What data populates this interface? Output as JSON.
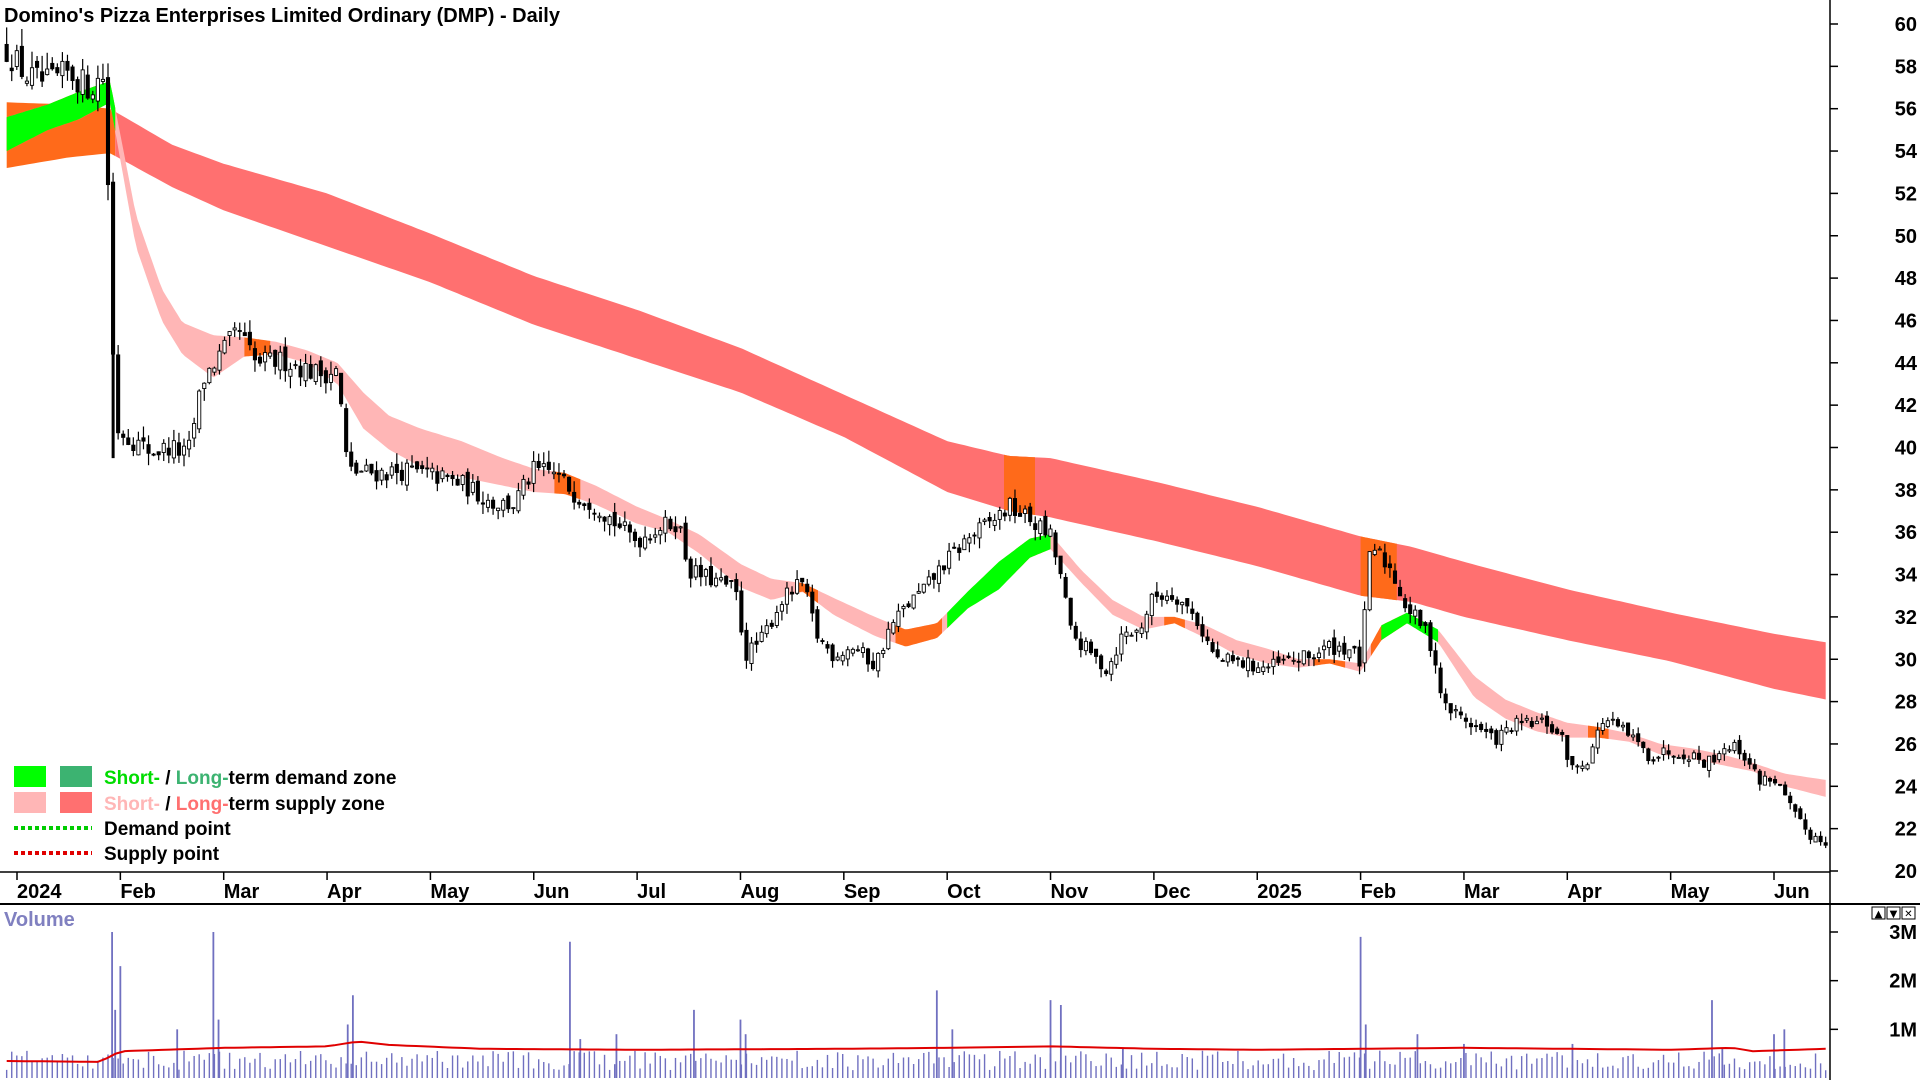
{
  "colors": {
    "short_demand": "#00ff00",
    "long_demand": "#3cb371",
    "short_supply": "#ffb6b6",
    "long_supply": "#ff7070",
    "crossover": "#ff6a1a",
    "volume_bar": "#7070c0",
    "volume_avg": "#e00000",
    "legend_short": "#00dd00",
    "legend_long": "#3cb371"
  },
  "chart_data": [
    {
      "type": "candlestick",
      "title": "Domino's Pizza Enterprises Limited Ordinary (DMP) - Daily",
      "y_axis_side": "right",
      "ylim": [
        19.5,
        61
      ],
      "y_ticks": [
        "60",
        "58",
        "56",
        "54",
        "52",
        "50",
        "48",
        "46",
        "44",
        "42",
        "40",
        "38",
        "36",
        "34",
        "32",
        "30",
        "28",
        "26",
        "24",
        "22",
        "20"
      ],
      "x_ticks": [
        {
          "label": "2024",
          "month": 0.0
        },
        {
          "label": "Feb",
          "month": 1.0
        },
        {
          "label": "Mar",
          "month": 2.0
        },
        {
          "label": "Apr",
          "month": 3.0
        },
        {
          "label": "May",
          "month": 4.0
        },
        {
          "label": "Jun",
          "month": 5.0
        },
        {
          "label": "Jul",
          "month": 6.0
        },
        {
          "label": "Aug",
          "month": 7.0
        },
        {
          "label": "Sep",
          "month": 8.0
        },
        {
          "label": "Oct",
          "month": 9.0
        },
        {
          "label": "Nov",
          "month": 10.0
        },
        {
          "label": "Dec",
          "month": 11.0
        },
        {
          "label": "2025",
          "month": 12.0
        },
        {
          "label": "Feb",
          "month": 13.0
        },
        {
          "label": "Mar",
          "month": 14.0
        },
        {
          "label": "Apr",
          "month": 15.0
        },
        {
          "label": "May",
          "month": 16.0
        },
        {
          "label": "Jun",
          "month": 17.0
        }
      ],
      "price_path": [
        [
          -0.1,
          58.8
        ],
        [
          0.1,
          57.5
        ],
        [
          0.3,
          57.2
        ],
        [
          0.5,
          57.7
        ],
        [
          0.7,
          57.0
        ],
        [
          0.85,
          57.6
        ],
        [
          0.95,
          41.0
        ],
        [
          1.1,
          40.4
        ],
        [
          1.3,
          39.8
        ],
        [
          1.5,
          40.0
        ],
        [
          1.65,
          39.6
        ],
        [
          1.8,
          43.2
        ],
        [
          2.0,
          44.6
        ],
        [
          2.15,
          45.5
        ],
        [
          2.3,
          44.0
        ],
        [
          2.6,
          44.1
        ],
        [
          2.9,
          43.5
        ],
        [
          3.1,
          43.6
        ],
        [
          3.2,
          38.9
        ],
        [
          3.5,
          38.8
        ],
        [
          3.8,
          38.9
        ],
        [
          4.0,
          38.7
        ],
        [
          4.3,
          38.3
        ],
        [
          4.6,
          37.4
        ],
        [
          4.8,
          37.3
        ],
        [
          5.0,
          38.9
        ],
        [
          5.2,
          38.8
        ],
        [
          5.4,
          37.8
        ],
        [
          5.6,
          37.3
        ],
        [
          5.8,
          36.4
        ],
        [
          6.0,
          35.6
        ],
        [
          6.2,
          36.2
        ],
        [
          6.4,
          36.5
        ],
        [
          6.5,
          34.2
        ],
        [
          6.7,
          33.8
        ],
        [
          6.95,
          33.3
        ],
        [
          7.05,
          30.2
        ],
        [
          7.2,
          30.9
        ],
        [
          7.4,
          32.8
        ],
        [
          7.6,
          33.6
        ],
        [
          7.75,
          31.0
        ],
        [
          7.9,
          30.2
        ],
        [
          8.1,
          30.6
        ],
        [
          8.3,
          29.7
        ],
        [
          8.45,
          31.5
        ],
        [
          8.6,
          32.5
        ],
        [
          8.8,
          33.4
        ],
        [
          8.95,
          34.4
        ],
        [
          9.2,
          35.7
        ],
        [
          9.4,
          36.4
        ],
        [
          9.6,
          37.2
        ],
        [
          9.8,
          36.6
        ],
        [
          10.0,
          35.8
        ],
        [
          10.1,
          33.9
        ],
        [
          10.2,
          31.2
        ],
        [
          10.4,
          30.2
        ],
        [
          10.55,
          29.5
        ],
        [
          10.7,
          31.2
        ],
        [
          10.85,
          31.3
        ],
        [
          11.0,
          33.0
        ],
        [
          11.2,
          33.1
        ],
        [
          11.4,
          32.0
        ],
        [
          11.6,
          30.0
        ],
        [
          11.85,
          29.8
        ],
        [
          12.1,
          29.6
        ],
        [
          12.3,
          29.9
        ],
        [
          12.5,
          30.1
        ],
        [
          12.7,
          30.6
        ],
        [
          12.9,
          30.5
        ],
        [
          13.0,
          29.8
        ],
        [
          13.1,
          35.4
        ],
        [
          13.3,
          34.2
        ],
        [
          13.45,
          32.4
        ],
        [
          13.6,
          31.6
        ],
        [
          13.7,
          30.5
        ],
        [
          13.8,
          27.8
        ],
        [
          14.0,
          27.2
        ],
        [
          14.3,
          26.2
        ],
        [
          14.5,
          26.9
        ],
        [
          14.8,
          27.0
        ],
        [
          14.95,
          26.2
        ],
        [
          15.05,
          24.8
        ],
        [
          15.2,
          25.3
        ],
        [
          15.35,
          27.2
        ],
        [
          15.6,
          26.4
        ],
        [
          15.8,
          25.4
        ],
        [
          16.0,
          25.7
        ],
        [
          16.2,
          25.5
        ],
        [
          16.35,
          25.1
        ],
        [
          16.55,
          26.0
        ],
        [
          16.7,
          25.6
        ],
        [
          16.85,
          24.3
        ],
        [
          17.0,
          24.4
        ],
        [
          17.2,
          22.6
        ],
        [
          17.35,
          21.7
        ],
        [
          17.5,
          21.4
        ]
      ],
      "short_zone": [
        [
          -0.1,
          55.6,
          54.0
        ],
        [
          0.3,
          56.2,
          55.0
        ],
        [
          0.6,
          56.8,
          55.5
        ],
        [
          0.9,
          57.3,
          56.3
        ],
        [
          1.15,
          51.0,
          49.5
        ],
        [
          1.4,
          47.5,
          46.0
        ],
        [
          1.6,
          45.9,
          44.4
        ],
        [
          1.9,
          45.3,
          43.3
        ],
        [
          2.2,
          45.2,
          44.3
        ],
        [
          2.5,
          45.0,
          44.4
        ],
        [
          2.8,
          44.6,
          44.0
        ],
        [
          3.1,
          44.0,
          43.0
        ],
        [
          3.35,
          42.6,
          40.9
        ],
        [
          3.6,
          41.5,
          39.9
        ],
        [
          3.9,
          40.9,
          39.1
        ],
        [
          4.3,
          40.3,
          38.6
        ],
        [
          4.7,
          39.5,
          38.2
        ],
        [
          5.0,
          39.0,
          37.9
        ],
        [
          5.3,
          38.8,
          37.8
        ],
        [
          5.6,
          38.2,
          37.3
        ],
        [
          6.0,
          37.2,
          36.4
        ],
        [
          6.3,
          36.6,
          36.0
        ],
        [
          6.6,
          35.9,
          35.0
        ],
        [
          7.0,
          34.5,
          33.4
        ],
        [
          7.3,
          33.8,
          32.8
        ],
        [
          7.6,
          33.6,
          33.2
        ],
        [
          7.9,
          32.9,
          32.1
        ],
        [
          8.3,
          32.0,
          31.1
        ],
        [
          8.6,
          31.4,
          30.6
        ],
        [
          8.9,
          31.7,
          31.0
        ],
        [
          9.2,
          33.2,
          32.4
        ],
        [
          9.5,
          34.6,
          33.3
        ],
        [
          9.8,
          35.7,
          34.8
        ],
        [
          10.0,
          35.9,
          35.2
        ],
        [
          10.3,
          34.2,
          33.6
        ],
        [
          10.6,
          32.8,
          32.1
        ],
        [
          10.9,
          32.0,
          31.4
        ],
        [
          11.2,
          32.0,
          31.7
        ],
        [
          11.5,
          31.6,
          31.0
        ],
        [
          11.8,
          30.9,
          30.2
        ],
        [
          12.1,
          30.5,
          29.8
        ],
        [
          12.4,
          30.0,
          29.6
        ],
        [
          12.7,
          30.0,
          29.8
        ],
        [
          13.0,
          29.8,
          29.4
        ],
        [
          13.2,
          31.6,
          30.9
        ],
        [
          13.45,
          32.2,
          31.7
        ],
        [
          13.75,
          31.4,
          30.8
        ],
        [
          14.1,
          29.2,
          28.2
        ],
        [
          14.4,
          28.1,
          27.2
        ],
        [
          14.7,
          27.5,
          26.6
        ],
        [
          15.0,
          27.0,
          26.3
        ],
        [
          15.3,
          26.8,
          26.3
        ],
        [
          15.6,
          26.5,
          26.1
        ],
        [
          15.9,
          26.0,
          25.5
        ],
        [
          16.2,
          25.8,
          25.3
        ],
        [
          16.5,
          25.5,
          25.0
        ],
        [
          16.8,
          25.1,
          24.7
        ],
        [
          17.1,
          24.6,
          24.0
        ],
        [
          17.5,
          24.3,
          23.5
        ]
      ],
      "long_zone": [
        [
          -0.1,
          56.3,
          53.2
        ],
        [
          0.5,
          56.2,
          53.7
        ],
        [
          0.9,
          56.0,
          53.9
        ],
        [
          1.5,
          54.3,
          52.3
        ],
        [
          2.0,
          53.4,
          51.2
        ],
        [
          3.0,
          52.0,
          49.5
        ],
        [
          4.0,
          50.1,
          47.8
        ],
        [
          5.0,
          48.1,
          45.8
        ],
        [
          6.0,
          46.5,
          44.2
        ],
        [
          7.0,
          44.7,
          42.6
        ],
        [
          8.0,
          42.5,
          40.5
        ],
        [
          9.0,
          40.3,
          37.9
        ],
        [
          9.6,
          39.6,
          37.0
        ],
        [
          10.0,
          39.5,
          36.7
        ],
        [
          11.0,
          38.4,
          35.6
        ],
        [
          12.0,
          37.2,
          34.4
        ],
        [
          13.0,
          35.8,
          33.0
        ],
        [
          13.5,
          35.3,
          32.7
        ],
        [
          14.0,
          34.6,
          32.0
        ],
        [
          15.0,
          33.3,
          30.9
        ],
        [
          16.0,
          32.2,
          29.9
        ],
        [
          17.0,
          31.2,
          28.6
        ],
        [
          17.5,
          30.8,
          28.1
        ]
      ],
      "crossover_regions": [
        [
          -0.1,
          0.95
        ],
        [
          2.2,
          2.45
        ],
        [
          5.2,
          5.45
        ],
        [
          7.55,
          7.75
        ],
        [
          8.5,
          8.95
        ],
        [
          9.65,
          9.95
        ],
        [
          11.1,
          11.3
        ],
        [
          12.55,
          12.85
        ],
        [
          13.1,
          13.45
        ],
        [
          15.2,
          15.4
        ]
      ],
      "demand_regions": [
        [
          -0.1,
          0.95
        ],
        [
          9.0,
          10.0
        ],
        [
          13.2,
          13.75
        ]
      ]
    },
    {
      "type": "bar",
      "title": "Volume",
      "y_ticks": [
        "3M",
        "2M",
        "1M"
      ],
      "ylim": [
        0,
        3.1
      ],
      "spikes": [
        [
          0.92,
          3.0
        ],
        [
          0.95,
          1.4
        ],
        [
          1.0,
          2.3
        ],
        [
          1.55,
          1.0
        ],
        [
          1.9,
          3.0
        ],
        [
          1.95,
          1.2
        ],
        [
          3.2,
          1.1
        ],
        [
          3.25,
          1.7
        ],
        [
          5.35,
          2.8
        ],
        [
          5.45,
          0.8
        ],
        [
          5.8,
          0.9
        ],
        [
          6.55,
          1.4
        ],
        [
          7.0,
          1.2
        ],
        [
          7.05,
          0.9
        ],
        [
          8.9,
          1.8
        ],
        [
          9.05,
          1.0
        ],
        [
          10.0,
          1.6
        ],
        [
          10.1,
          1.5
        ],
        [
          10.7,
          0.6
        ],
        [
          13.0,
          2.9
        ],
        [
          13.05,
          1.1
        ],
        [
          13.55,
          0.9
        ],
        [
          14.0,
          0.7
        ],
        [
          15.05,
          0.7
        ],
        [
          16.4,
          1.6
        ],
        [
          16.5,
          0.6
        ],
        [
          17.0,
          0.9
        ],
        [
          17.1,
          1.0
        ]
      ],
      "avg_path": [
        [
          -0.1,
          0.35
        ],
        [
          0.8,
          0.33
        ],
        [
          1.0,
          0.55
        ],
        [
          2.0,
          0.62
        ],
        [
          3.0,
          0.65
        ],
        [
          3.3,
          0.75
        ],
        [
          3.6,
          0.68
        ],
        [
          4.5,
          0.6
        ],
        [
          6.0,
          0.58
        ],
        [
          8.0,
          0.6
        ],
        [
          9.0,
          0.62
        ],
        [
          10.0,
          0.65
        ],
        [
          11.0,
          0.6
        ],
        [
          12.0,
          0.58
        ],
        [
          13.0,
          0.6
        ],
        [
          14.0,
          0.62
        ],
        [
          15.0,
          0.6
        ],
        [
          16.0,
          0.58
        ],
        [
          16.6,
          0.62
        ],
        [
          16.8,
          0.55
        ],
        [
          17.5,
          0.6
        ]
      ],
      "base_volume": 0.45
    }
  ],
  "legend": {
    "row1": {
      "short": "Short-",
      "sep": " / ",
      "long": "Long-",
      "rest": "term demand zone"
    },
    "row2": {
      "short": "Short-",
      "sep": " / ",
      "long": "Long-",
      "rest": "term supply zone"
    },
    "row3": "Demand point",
    "row4": "Supply point"
  },
  "panel_buttons": [
    "▲",
    "▼",
    "✕"
  ]
}
